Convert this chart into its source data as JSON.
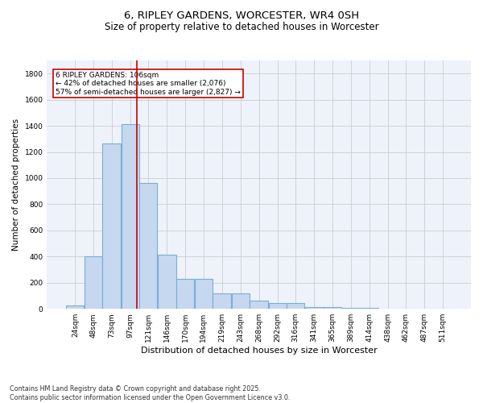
{
  "title": "6, RIPLEY GARDENS, WORCESTER, WR4 0SH",
  "subtitle": "Size of property relative to detached houses in Worcester",
  "xlabel": "Distribution of detached houses by size in Worcester",
  "ylabel": "Number of detached properties",
  "bar_color": "#c5d8f0",
  "bar_edgecolor": "#7aadd4",
  "bar_linewidth": 0.8,
  "grid_color": "#cccccc",
  "background_color": "#eef2fb",
  "vline_x": 106,
  "vline_color": "#cc0000",
  "annotation_box_color": "#cc0000",
  "annotation_text": "6 RIPLEY GARDENS: 106sqm\n← 42% of detached houses are smaller (2,076)\n57% of semi-detached houses are larger (2,827) →",
  "annotation_fontsize": 6.5,
  "categories": [
    "24sqm",
    "48sqm",
    "73sqm",
    "97sqm",
    "121sqm",
    "146sqm",
    "170sqm",
    "194sqm",
    "219sqm",
    "243sqm",
    "268sqm",
    "292sqm",
    "316sqm",
    "341sqm",
    "365sqm",
    "389sqm",
    "414sqm",
    "438sqm",
    "462sqm",
    "487sqm",
    "511sqm"
  ],
  "bin_edges": [
    12,
    36,
    60,
    85,
    109,
    133,
    158,
    182,
    206,
    231,
    255,
    280,
    304,
    328,
    353,
    377,
    401,
    426,
    450,
    474,
    499,
    523
  ],
  "values": [
    25,
    400,
    1265,
    1410,
    960,
    415,
    232,
    232,
    120,
    120,
    65,
    42,
    42,
    15,
    15,
    8,
    8,
    0,
    0,
    0,
    0
  ],
  "ylim": [
    0,
    1900
  ],
  "yticks": [
    0,
    200,
    400,
    600,
    800,
    1000,
    1200,
    1400,
    1600,
    1800
  ],
  "title_fontsize": 9.5,
  "subtitle_fontsize": 8.5,
  "xlabel_fontsize": 8,
  "ylabel_fontsize": 7.5,
  "tick_fontsize": 6.5,
  "footer_text": "Contains HM Land Registry data © Crown copyright and database right 2025.\nContains public sector information licensed under the Open Government Licence v3.0."
}
